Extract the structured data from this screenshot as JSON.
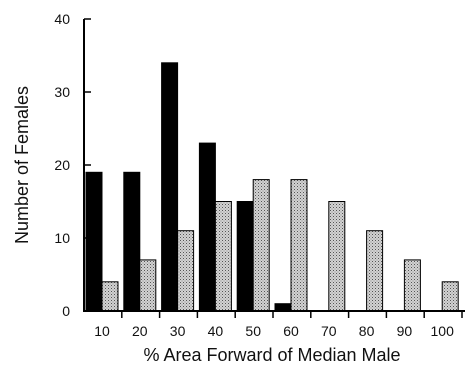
{
  "chart_data": {
    "type": "bar",
    "title": "",
    "xlabel": "% Area Forward of Median Male",
    "ylabel": "Number of Females",
    "categories": [
      "10",
      "20",
      "30",
      "40",
      "50",
      "60",
      "70",
      "80",
      "90",
      "100"
    ],
    "series": [
      {
        "values": [
          19,
          19,
          34,
          23,
          15,
          1,
          0,
          0,
          0,
          0
        ],
        "color": "#000000",
        "fill": "solid"
      },
      {
        "values": [
          4,
          7,
          11,
          15,
          18,
          18,
          15,
          11,
          7,
          4
        ],
        "color": "#bdbdbd",
        "fill": "stippled"
      }
    ],
    "ylim": [
      0,
      40
    ],
    "yticks": [
      "0",
      "10",
      "20",
      "30",
      "40"
    ],
    "grid": false,
    "legend": "none"
  }
}
